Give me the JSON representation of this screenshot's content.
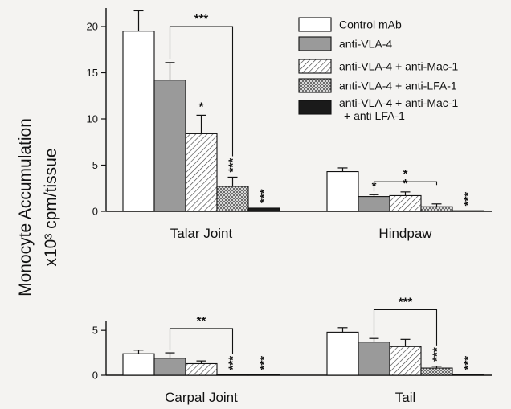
{
  "y_axis_label": {
    "line1": "Monocyte Accumulation",
    "line2": "x10³ cpm/tissue"
  },
  "legend": {
    "items": [
      {
        "label": "Control mAb",
        "pattern": "white"
      },
      {
        "label": "anti-VLA-4",
        "pattern": "gray"
      },
      {
        "label": "anti-VLA-4 + anti-Mac-1",
        "pattern": "hatch"
      },
      {
        "label": "anti-VLA-4 + anti-LFA-1",
        "pattern": "cross"
      },
      {
        "label_lines": [
          "anti-VLA-4 + anti-Mac-1",
          "+ anti LFA-1"
        ],
        "pattern": "black"
      }
    ]
  },
  "colors": {
    "gray_fill": "#9a9a9a",
    "black_fill": "#1a1a1a",
    "stroke": "#111111",
    "background": "#f4f3f1"
  },
  "chart_data": [
    {
      "type": "bar",
      "panel": "top",
      "categories": [
        "Talar Joint",
        "Hindpaw"
      ],
      "series": [
        {
          "name": "Control mAb",
          "values": [
            19.5,
            4.3
          ],
          "errors": [
            2.2,
            0.4
          ]
        },
        {
          "name": "anti-VLA-4",
          "values": [
            14.2,
            1.6
          ],
          "errors": [
            1.9,
            0.2
          ]
        },
        {
          "name": "anti-VLA-4 + anti-Mac-1",
          "values": [
            8.4,
            1.7
          ],
          "errors": [
            2.0,
            0.4
          ]
        },
        {
          "name": "anti-VLA-4 + anti-LFA-1",
          "values": [
            2.7,
            0.5
          ],
          "errors": [
            1.0,
            0.3
          ]
        },
        {
          "name": "anti-VLA-4 + anti-Mac-1 + anti LFA-1",
          "values": [
            0.35,
            0.05
          ],
          "errors": [
            0,
            0
          ]
        }
      ],
      "ylim": [
        0,
        22
      ],
      "yticks": [
        "0",
        "5",
        "10",
        "15",
        "20"
      ],
      "bar_annotations": [
        [
          "",
          "",
          "*",
          "***",
          "***"
        ],
        [
          "",
          "*",
          "*",
          "",
          "***"
        ]
      ],
      "brackets": [
        {
          "category": 0,
          "from_series": 1,
          "to_series": 3,
          "label": "***",
          "y": 20.0
        },
        {
          "category": 1,
          "from_series": 1,
          "to_series": 3,
          "label": "*",
          "y": 3.2
        }
      ]
    },
    {
      "type": "bar",
      "panel": "bottom",
      "categories": [
        "Carpal Joint",
        "Tail"
      ],
      "series": [
        {
          "name": "Control mAb",
          "values": [
            2.4,
            4.8
          ],
          "errors": [
            0.4,
            0.5
          ]
        },
        {
          "name": "anti-VLA-4",
          "values": [
            1.9,
            3.7
          ],
          "errors": [
            0.6,
            0.4
          ]
        },
        {
          "name": "anti-VLA-4 + anti-Mac-1",
          "values": [
            1.3,
            3.2
          ],
          "errors": [
            0.3,
            0.8
          ]
        },
        {
          "name": "anti-VLA-4 + anti-LFA-1",
          "values": [
            0.05,
            0.8
          ],
          "errors": [
            0,
            0.2
          ]
        },
        {
          "name": "anti-VLA-4 + anti-Mac-1 + anti LFA-1",
          "values": [
            0.05,
            0.05
          ],
          "errors": [
            0,
            0
          ]
        }
      ],
      "ylim": [
        0,
        6
      ],
      "yticks": [
        "0",
        "5"
      ],
      "bar_annotations": [
        [
          "",
          "",
          "",
          "***",
          "***"
        ],
        [
          "",
          "",
          "",
          "***",
          "***"
        ]
      ],
      "brackets": [
        {
          "category": 0,
          "from_series": 1,
          "to_series": 3,
          "label": "**",
          "y": 5.2
        },
        {
          "category": 1,
          "from_series": 1,
          "to_series": 3,
          "label": "***",
          "y": 7.3
        }
      ]
    }
  ]
}
